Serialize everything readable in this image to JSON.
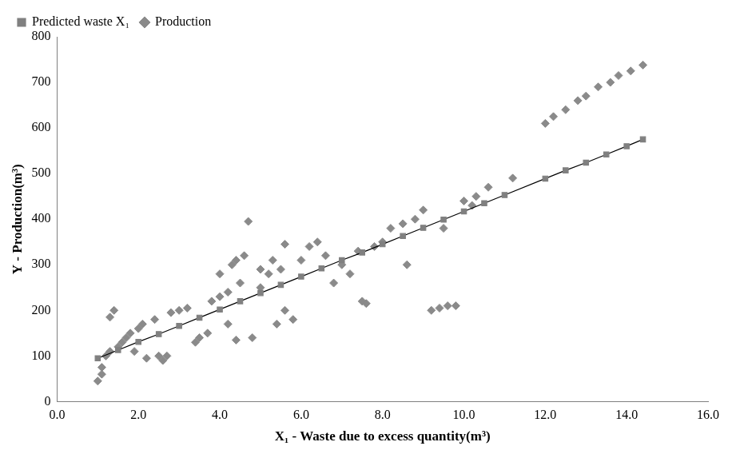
{
  "chart_data": {
    "type": "scatter",
    "x_label": "X₁ - Waste due to excess quantity(m³)",
    "y_label": "Y - Production(m³)",
    "xlim": [
      0,
      16
    ],
    "xticks": [
      {
        "value": 0,
        "label": "0.0"
      },
      {
        "value": 2,
        "label": "2.0"
      },
      {
        "value": 4,
        "label": "4.0"
      },
      {
        "value": 6,
        "label": "6.0"
      },
      {
        "value": 8,
        "label": "8.0"
      },
      {
        "value": 10,
        "label": "10.0"
      },
      {
        "value": 12,
        "label": "12.0"
      },
      {
        "value": 14,
        "label": "14.0"
      },
      {
        "value": 16,
        "label": "16.0"
      }
    ],
    "ylim": [
      0,
      800
    ],
    "yticks": [
      0,
      100,
      200,
      300,
      400,
      500,
      600,
      700,
      800
    ],
    "grid": false,
    "legend": "top-left",
    "series": [
      {
        "name": "Production",
        "color": "#8a8a8a",
        "marker": "diamond",
        "x": [
          1.0,
          1.1,
          1.1,
          1.2,
          1.3,
          1.3,
          1.4,
          1.5,
          1.6,
          1.7,
          1.8,
          1.9,
          2.0,
          2.1,
          2.2,
          2.4,
          2.5,
          2.6,
          2.7,
          2.8,
          3.0,
          3.2,
          3.4,
          3.5,
          3.7,
          3.8,
          4.0,
          4.0,
          4.2,
          4.2,
          4.3,
          4.4,
          4.4,
          4.5,
          4.6,
          4.7,
          4.8,
          5.0,
          5.0,
          5.2,
          5.3,
          5.4,
          5.5,
          5.6,
          5.6,
          5.8,
          6.0,
          6.2,
          6.4,
          6.6,
          6.8,
          7.0,
          7.2,
          7.4,
          7.5,
          7.6,
          7.8,
          8.0,
          8.2,
          8.5,
          8.6,
          8.8,
          9.0,
          9.2,
          9.4,
          9.5,
          9.6,
          9.8,
          10.0,
          10.2,
          10.3,
          10.6,
          11.2,
          12.0,
          12.2,
          12.5,
          12.8,
          13.0,
          13.3,
          13.6,
          13.8,
          14.1,
          14.4
        ],
        "values": [
          45,
          60,
          75,
          100,
          110,
          185,
          200,
          120,
          130,
          140,
          150,
          110,
          160,
          170,
          95,
          180,
          100,
          90,
          100,
          195,
          200,
          205,
          130,
          140,
          150,
          220,
          230,
          280,
          240,
          170,
          300,
          310,
          135,
          260,
          320,
          395,
          140,
          250,
          290,
          280,
          310,
          170,
          290,
          200,
          345,
          180,
          310,
          340,
          350,
          320,
          260,
          300,
          280,
          330,
          220,
          215,
          340,
          350,
          380,
          390,
          300,
          400,
          420,
          200,
          205,
          380,
          210,
          210,
          440,
          430,
          450,
          470,
          490,
          610,
          625,
          640,
          660,
          670,
          690,
          700,
          715,
          725,
          738
        ]
      },
      {
        "name": "Predicted waste X₁",
        "color": "#808080",
        "marker": "square",
        "line_style": "solid",
        "x": [
          1.0,
          1.5,
          2.0,
          2.5,
          3.0,
          3.5,
          4.0,
          4.5,
          5.0,
          5.5,
          6.0,
          6.5,
          7.0,
          7.5,
          8.0,
          8.5,
          9.0,
          9.5,
          10.0,
          10.5,
          11.0,
          12.0,
          12.5,
          13.0,
          13.5,
          14.0,
          14.4
        ],
        "values": [
          95,
          113,
          131,
          148,
          166,
          184,
          202,
          220,
          238,
          256,
          274,
          292,
          310,
          327,
          345,
          363,
          381,
          399,
          417,
          435,
          453,
          489,
          507,
          524,
          542,
          560,
          575
        ]
      }
    ]
  }
}
